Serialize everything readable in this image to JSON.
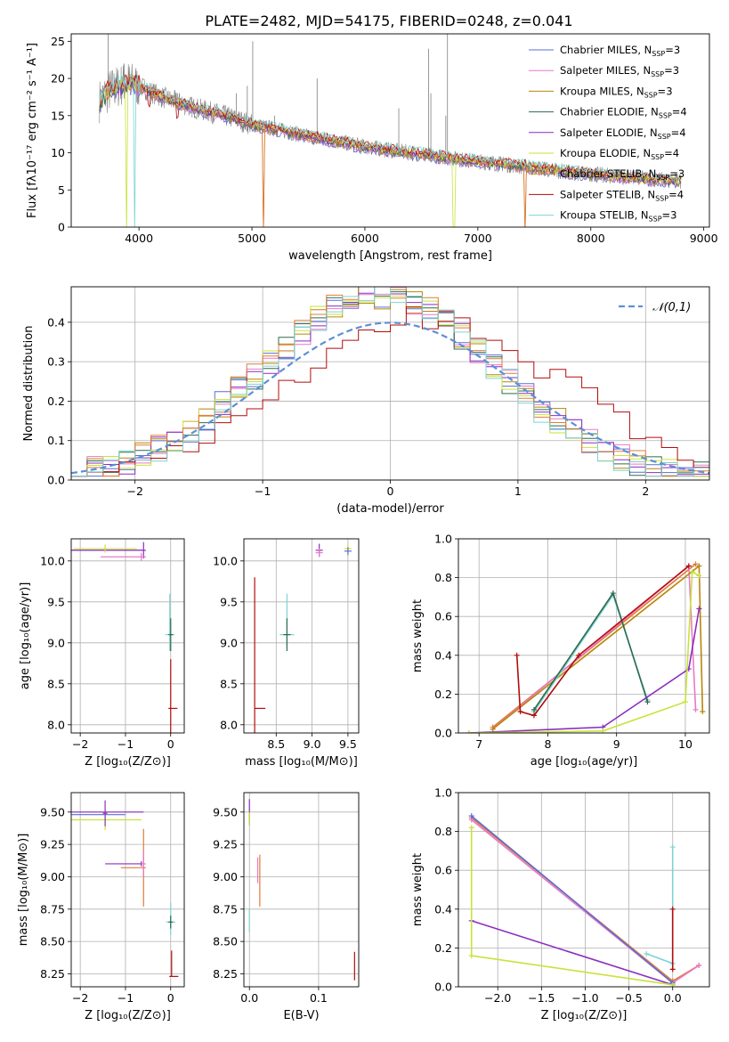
{
  "figure": {
    "title": "PLATE=2482, MJD=54175, FIBERID=0248, z=0.041"
  },
  "models": [
    {
      "name": "Chabrier MILES",
      "nssp": "3",
      "color": "#5b6fcf"
    },
    {
      "name": "Salpeter MILES",
      "nssp": "3",
      "color": "#e879c9"
    },
    {
      "name": "Kroupa MILES",
      "nssp": "3",
      "color": "#b8860b"
    },
    {
      "name": "Chabrier ELODIE",
      "nssp": "4",
      "color": "#2e6b4e"
    },
    {
      "name": "Salpeter ELODIE",
      "nssp": "4",
      "color": "#8b2fbf"
    },
    {
      "name": "Kroupa ELODIE",
      "nssp": "4",
      "color": "#c9e23a"
    },
    {
      "name": "Chabrier STELIB",
      "nssp": "3",
      "color": "#e07b39"
    },
    {
      "name": "Salpeter STELIB",
      "nssp": "4",
      "color": "#b30c0c"
    },
    {
      "name": "Kroupa STELIB",
      "nssp": "3",
      "color": "#7fd3d3"
    }
  ],
  "chart_data": [
    {
      "id": "spectrum",
      "type": "line",
      "xlabel": "wavelength [Angstrom, rest frame]",
      "ylabel": "Flux [fλ10⁻¹⁷ erg cm⁻² s⁻¹ A⁻¹]",
      "xlim": [
        3400,
        9050
      ],
      "ylim": [
        0,
        26
      ],
      "xticks": [
        4000,
        5000,
        6000,
        7000,
        8000,
        9000
      ],
      "yticks": [
        0,
        5,
        10,
        15,
        20,
        25
      ],
      "observed_color": "#808080",
      "continuum": {
        "x": [
          3650,
          3750,
          3900,
          4000,
          4200,
          4500,
          4800,
          5000,
          5200,
          5500,
          5800,
          6000,
          6300,
          6600,
          6900,
          7200,
          7500,
          7800,
          8100,
          8400,
          8800
        ],
        "y": [
          17.0,
          18.5,
          19.5,
          19.0,
          17.5,
          16.0,
          14.8,
          13.8,
          13.2,
          12.2,
          11.4,
          10.8,
          10.2,
          9.6,
          9.0,
          8.5,
          8.0,
          7.4,
          7.0,
          6.6,
          6.2
        ]
      },
      "emission_lines": [
        {
          "x": 3727,
          "y": 26
        },
        {
          "x": 3869,
          "y": 22
        },
        {
          "x": 4102,
          "y": 16.5
        },
        {
          "x": 4340,
          "y": 18
        },
        {
          "x": 4861,
          "y": 18
        },
        {
          "x": 4959,
          "y": 19
        },
        {
          "x": 5007,
          "y": 25
        },
        {
          "x": 5200,
          "y": 15
        },
        {
          "x": 5577,
          "y": 20
        },
        {
          "x": 6300,
          "y": 16
        },
        {
          "x": 6563,
          "y": 24
        },
        {
          "x": 6584,
          "y": 18
        },
        {
          "x": 6716,
          "y": 15
        },
        {
          "x": 6731,
          "y": 26
        }
      ]
    },
    {
      "id": "residuals",
      "type": "line",
      "xlabel": "(data-model)/error",
      "ylabel": "Normed distribution",
      "xlim": [
        -2.5,
        2.5
      ],
      "ylim": [
        0,
        0.49
      ],
      "xticks": [
        -2,
        -1,
        0,
        1,
        2
      ],
      "yticks": [
        0,
        0.1,
        0.2,
        0.3,
        0.4
      ],
      "normal_label": "𝒩(0,1)",
      "normal_color": "#5c8fd6"
    },
    {
      "id": "age_vs_Z",
      "type": "scatter",
      "xlabel": "Z [log₁₀(Z/Z⊙)]",
      "ylabel": "age  [log₁₀(age/yr)]",
      "xlim": [
        -2.2,
        0.3
      ],
      "ylim": [
        7.9,
        10.27
      ],
      "xticks": [
        -2,
        -1,
        0
      ],
      "yticks": [
        8.0,
        8.5,
        9.0,
        9.5,
        10.0
      ],
      "points": [
        {
          "x": -2.3,
          "y": 10.13,
          "xerr": [
            0.05,
            1.7
          ],
          "yerr": [
            0.05,
            0.05
          ],
          "c": 0
        },
        {
          "x": -0.6,
          "y": 10.13,
          "xerr": [
            1.6,
            0.05
          ],
          "yerr": [
            0.1,
            0.1
          ],
          "c": 4
        },
        {
          "x": -0.65,
          "y": 10.05,
          "xerr": [
            0.9,
            0.1
          ],
          "yerr": [
            0.05,
            0.05
          ],
          "c": 1
        },
        {
          "x": -1.45,
          "y": 10.15,
          "xerr": [
            0.7,
            0.7
          ],
          "yerr": [
            0.05,
            0.05
          ],
          "c": 5
        },
        {
          "x": -0.02,
          "y": 9.1,
          "xerr": [
            0.1,
            0.1
          ],
          "yerr": [
            0.2,
            0.5
          ],
          "c": 8
        },
        {
          "x": 0.0,
          "y": 9.1,
          "xerr": [
            0.05,
            0.05
          ],
          "yerr": [
            0.2,
            0.2
          ],
          "c": 3
        },
        {
          "x": 0.0,
          "y": 8.2,
          "xerr": [
            0.05,
            0.15
          ],
          "yerr": [
            0.3,
            0.6
          ],
          "c": 7
        }
      ]
    },
    {
      "id": "age_vs_mass",
      "type": "scatter",
      "xlabel": "mass [log₁₀(M/M⊙)]",
      "ylabel": "",
      "xlim": [
        8.05,
        9.65
      ],
      "ylim": [
        7.9,
        10.27
      ],
      "xticks": [
        8.5,
        9.0,
        9.5
      ],
      "yticks": [
        8.0,
        8.5,
        9.0,
        9.5,
        10.0
      ],
      "points": [
        {
          "x": 9.1,
          "y": 10.13,
          "xerr": [
            0.05,
            0.05
          ],
          "yerr": [
            0.08,
            0.08
          ],
          "c": 4
        },
        {
          "x": 9.1,
          "y": 10.1,
          "xerr": [
            0.05,
            0.05
          ],
          "yerr": [
            0.05,
            0.05
          ],
          "c": 1
        },
        {
          "x": 9.5,
          "y": 10.15,
          "xerr": [
            0.05,
            0.05
          ],
          "yerr": [
            0.05,
            0.05
          ],
          "c": 5
        },
        {
          "x": 9.5,
          "y": 10.12,
          "xerr": [
            0.05,
            0.05
          ],
          "yerr": [
            0.05,
            0.05
          ],
          "c": 0
        },
        {
          "x": 8.65,
          "y": 9.1,
          "xerr": [
            0.1,
            0.1
          ],
          "yerr": [
            0.15,
            0.5
          ],
          "c": 8
        },
        {
          "x": 8.65,
          "y": 9.1,
          "xerr": [
            0.05,
            0.05
          ],
          "yerr": [
            0.2,
            0.2
          ],
          "c": 3
        },
        {
          "x": 8.2,
          "y": 8.2,
          "xerr": [
            0.0,
            0.15
          ],
          "yerr": [
            0.3,
            1.6
          ],
          "c": 7
        }
      ]
    },
    {
      "id": "weight_vs_age",
      "type": "line",
      "xlabel": "age  [log₁₀(age/yr)]",
      "ylabel": "mass weight",
      "xlim": [
        6.7,
        10.35
      ],
      "ylim": [
        0,
        1.0
      ],
      "xticks": [
        7,
        8,
        9,
        10
      ],
      "yticks": [
        0.0,
        0.2,
        0.4,
        0.6,
        0.8,
        1.0
      ],
      "series": [
        {
          "c": 6,
          "x": [
            7.2,
            10.15
          ],
          "y": [
            0.03,
            0.87
          ]
        },
        {
          "c": 1,
          "x": [
            7.2,
            10.05,
            10.15
          ],
          "y": [
            0.02,
            0.86,
            0.12
          ]
        },
        {
          "c": 2,
          "x": [
            7.2,
            10.2,
            10.25
          ],
          "y": [
            0.02,
            0.86,
            0.11
          ]
        },
        {
          "c": 8,
          "x": [
            7.8,
            8.95,
            9.45
          ],
          "y": [
            0.11,
            0.71,
            0.17
          ]
        },
        {
          "c": 3,
          "x": [
            7.8,
            8.95,
            9.45
          ],
          "y": [
            0.12,
            0.72,
            0.16
          ]
        },
        {
          "c": 7,
          "x": [
            7.55,
            7.6,
            7.8,
            8.45,
            10.05
          ],
          "y": [
            0.4,
            0.11,
            0.09,
            0.4,
            0.86
          ]
        },
        {
          "c": 4,
          "x": [
            6.85,
            8.8,
            10.05,
            10.2
          ],
          "y": [
            0.0,
            0.03,
            0.33,
            0.64
          ]
        },
        {
          "c": 5,
          "x": [
            6.85,
            8.8,
            10.0,
            10.1,
            10.2
          ],
          "y": [
            0.0,
            0.01,
            0.16,
            0.83,
            0.81
          ]
        }
      ]
    },
    {
      "id": "mass_vs_Z",
      "type": "scatter",
      "xlabel": "Z [log₁₀(Z/Z⊙)]",
      "ylabel": "mass [log₁₀(M/M⊙)]",
      "xlim": [
        -2.2,
        0.3
      ],
      "ylim": [
        8.15,
        9.65
      ],
      "xticks": [
        -2,
        -1,
        0
      ],
      "yticks": [
        8.25,
        8.5,
        8.75,
        9.0,
        9.25,
        9.5
      ],
      "points": [
        {
          "x": -2.3,
          "y": 9.5,
          "xerr": [
            0.05,
            1.7
          ],
          "yerr": [
            0.04,
            0.04
          ],
          "c": 4
        },
        {
          "x": -2.3,
          "y": 9.48,
          "xerr": [
            0.05,
            1.3
          ],
          "yerr": [
            0.04,
            0.04
          ],
          "c": 0
        },
        {
          "x": -1.45,
          "y": 9.44,
          "xerr": [
            0.8,
            0.8
          ],
          "yerr": [
            0.08,
            0.08
          ],
          "c": 5
        },
        {
          "x": -1.45,
          "y": 9.49,
          "xerr": [
            0.05,
            0.05
          ],
          "yerr": [
            0.1,
            0.1
          ],
          "c": 4
        },
        {
          "x": -0.65,
          "y": 9.1,
          "xerr": [
            0.8,
            0.05
          ],
          "yerr": [
            0.02,
            0.02
          ],
          "c": 4
        },
        {
          "x": -0.6,
          "y": 9.07,
          "xerr": [
            0.5,
            0.05
          ],
          "yerr": [
            0.3,
            0.3
          ],
          "c": 6
        },
        {
          "x": -0.6,
          "y": 9.1,
          "xerr": [
            0.05,
            0.05
          ],
          "yerr": [
            0.1,
            0.1
          ],
          "c": 1
        },
        {
          "x": 0.0,
          "y": 8.65,
          "xerr": [
            0.1,
            0.1
          ],
          "yerr": [
            0.1,
            0.15
          ],
          "c": 8
        },
        {
          "x": 0.0,
          "y": 8.65,
          "xerr": [
            0.05,
            0.05
          ],
          "yerr": [
            0.05,
            0.05
          ],
          "c": 3
        },
        {
          "x": 0.02,
          "y": 8.23,
          "xerr": [
            0.05,
            0.15
          ],
          "yerr": [
            0.0,
            0.2
          ],
          "c": 7
        }
      ]
    },
    {
      "id": "mass_vs_ebv",
      "type": "scatter",
      "xlabel": "E(B-V)",
      "ylabel": "",
      "xlim": [
        -0.008,
        0.158
      ],
      "ylim": [
        8.15,
        9.65
      ],
      "xticks": [
        0.0,
        0.1
      ],
      "yticks": [
        8.25,
        8.5,
        8.75,
        9.0,
        9.25,
        9.5
      ],
      "points": [
        {
          "x": 0.0,
          "y": 9.5,
          "xerr": [
            0,
            0
          ],
          "yerr": [
            0.1,
            0.1
          ],
          "c": 4
        },
        {
          "x": 0.0,
          "y": 9.45,
          "xerr": [
            0,
            0
          ],
          "yerr": [
            0.05,
            0.05
          ],
          "c": 5
        },
        {
          "x": 0.012,
          "y": 9.05,
          "xerr": [
            0,
            0
          ],
          "yerr": [
            0.1,
            0.1
          ],
          "c": 1
        },
        {
          "x": 0.015,
          "y": 8.97,
          "xerr": [
            0,
            0
          ],
          "yerr": [
            0.2,
            0.2
          ],
          "c": 6
        },
        {
          "x": 0.0,
          "y": 8.65,
          "xerr": [
            0,
            0
          ],
          "yerr": [
            0.08,
            0.1
          ],
          "c": 8
        },
        {
          "x": 0.152,
          "y": 8.3,
          "xerr": [
            0,
            0
          ],
          "yerr": [
            0.1,
            0.12
          ],
          "c": 7
        }
      ]
    },
    {
      "id": "weight_vs_Z",
      "type": "line",
      "xlabel": "Z [log₁₀(Z/Z⊙)]",
      "ylabel": "mass weight",
      "xlim": [
        -2.45,
        0.42
      ],
      "ylim": [
        0,
        1.0
      ],
      "xticks": [
        -2.0,
        -1.5,
        -1.0,
        -0.5,
        0.0
      ],
      "yticks": [
        0.0,
        0.2,
        0.4,
        0.6,
        0.8,
        1.0
      ],
      "series": [
        {
          "c": 6,
          "x": [
            -2.3,
            0.0,
            0.3
          ],
          "y": [
            0.87,
            0.03,
            0.11
          ]
        },
        {
          "c": 1,
          "x": [
            -2.3,
            0.0,
            0.3
          ],
          "y": [
            0.86,
            0.02,
            0.11
          ]
        },
        {
          "c": 0,
          "x": [
            -2.3,
            0.0
          ],
          "y": [
            0.88,
            0.02
          ]
        },
        {
          "c": 8,
          "x": [
            -0.3,
            0.0,
            0.0
          ],
          "y": [
            0.17,
            0.12,
            0.72
          ]
        },
        {
          "c": 7,
          "x": [
            0.0,
            0.0
          ],
          "y": [
            0.4,
            0.09
          ]
        },
        {
          "c": 4,
          "x": [
            -2.3,
            0.0
          ],
          "y": [
            0.34,
            0.01
          ]
        },
        {
          "c": 5,
          "x": [
            -2.3,
            -2.3,
            0.0
          ],
          "y": [
            0.82,
            0.16,
            0.01
          ]
        }
      ]
    }
  ]
}
